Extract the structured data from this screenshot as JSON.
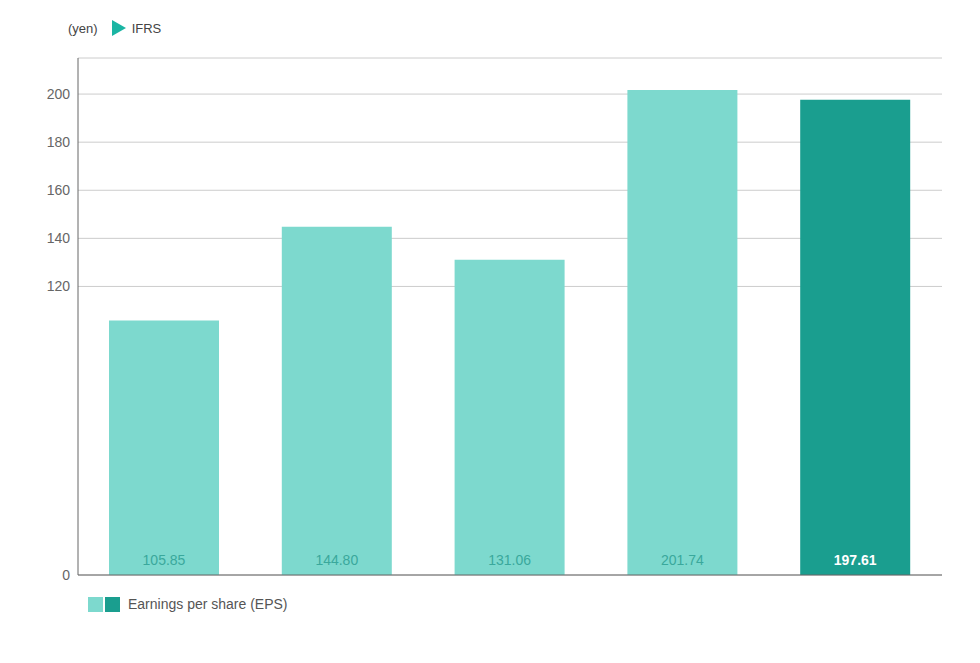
{
  "chart_data": {
    "type": "bar",
    "ylabel": "(yen)",
    "annotations": [
      "IFRS"
    ],
    "categories": [
      null,
      null,
      null,
      null,
      null
    ],
    "series": [
      {
        "name": "Earnings per share (EPS)",
        "colors": [
          "#7DD9CE",
          "#7DD9CE",
          "#7DD9CE",
          "#7DD9CE",
          "#1A9E8F"
        ],
        "values": [
          105.85,
          144.8,
          131.06,
          201.74,
          197.61
        ],
        "value_labels": [
          "105.85",
          "144.80",
          "131.06",
          "201.74",
          "197.61"
        ]
      }
    ],
    "ylim": [
      0,
      215
    ],
    "yticks": [
      0,
      120,
      140,
      160,
      180,
      200
    ],
    "grid": true,
    "legend": "lower left",
    "data_labels": true,
    "tick_labels": "y"
  }
}
